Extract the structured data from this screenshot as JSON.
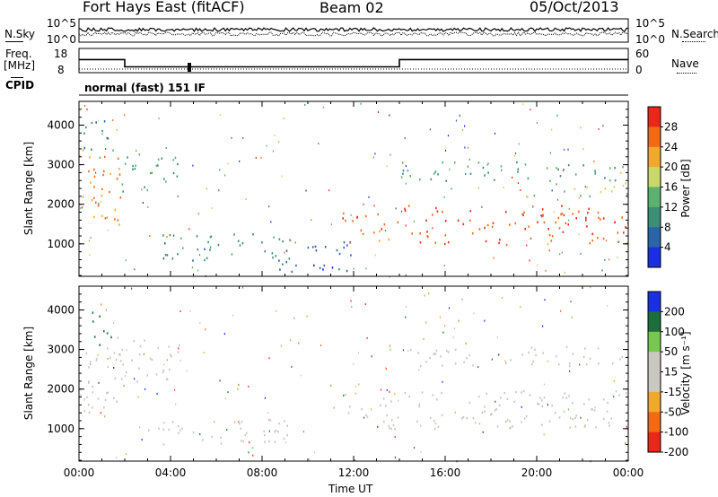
{
  "header": {
    "title": "Fort Hays East (fitACF)",
    "beam": "Beam 02",
    "date": "05/Oct/2013"
  },
  "noise_panel": {
    "left_label": "N.Sky",
    "right_label": "N.Search",
    "tick_top": "10^5",
    "tick_bottom": "10^0"
  },
  "freq_panel": {
    "left_label_1": "Freq.",
    "left_label_2": "[MHz]",
    "right_label": "Nave",
    "left_ticks": [
      "18",
      "8"
    ],
    "right_ticks": [
      "60",
      "0"
    ],
    "cpid_label": "CPID",
    "mode_text": "normal (fast) 151 IF"
  },
  "colors": {
    "power_scale": [
      "#1a2fe0",
      "#2c64a8",
      "#3c8e74",
      "#5cb070",
      "#c8d86a",
      "#f0a830",
      "#f06a18",
      "#e8281a"
    ],
    "velocity_scale": [
      "#1a2fe0",
      "#1e6e3c",
      "#78c850",
      "#c8c8c0",
      "#c8c8c0",
      "#f0a830",
      "#f06a18",
      "#e8281a"
    ]
  },
  "chart_data": [
    {
      "type": "heatmap",
      "name": "power",
      "x_axis": {
        "label": "Time UT",
        "range_hours": [
          0,
          24
        ],
        "tick_labels": [
          "00:00",
          "04:00",
          "08:00",
          "12:00",
          "16:00",
          "20:00",
          "00:00"
        ]
      },
      "y_axis": {
        "label": "Slant Range [km]",
        "range_km": [
          180,
          4600
        ],
        "tick_labels": [
          "1000",
          "2000",
          "3000",
          "4000"
        ]
      },
      "colorbar": {
        "label": "Power [dB]",
        "tick_labels": [
          "4",
          "8",
          "12",
          "16",
          "20",
          "24",
          "28"
        ],
        "range": [
          0,
          32
        ]
      },
      "regions": [
        {
          "t_start": 0.0,
          "t_end": 1.9,
          "range_low": 1400,
          "range_high": 3400,
          "value": 24
        },
        {
          "t_start": 0.2,
          "t_end": 1.6,
          "range_low": 3200,
          "range_high": 4200,
          "value": 10
        },
        {
          "t_start": 1.8,
          "t_end": 4.4,
          "range_low": 2200,
          "range_high": 3300,
          "value": 12
        },
        {
          "t_start": 3.0,
          "t_end": 9.2,
          "range_low": 600,
          "range_high": 1300,
          "value": 10
        },
        {
          "t_start": 8.6,
          "t_end": 12.0,
          "range_low": 300,
          "range_high": 1100,
          "value": 6
        },
        {
          "t_start": 11.5,
          "t_end": 14.0,
          "range_low": 1000,
          "range_high": 1800,
          "value": 26
        },
        {
          "t_start": 14.0,
          "t_end": 24.0,
          "range_low": 1000,
          "range_high": 2000,
          "value": 28
        },
        {
          "t_start": 14.0,
          "t_end": 24.0,
          "range_low": 2600,
          "range_high": 3100,
          "value": 12
        },
        {
          "t_start": 19.5,
          "t_end": 24.0,
          "range_low": 2200,
          "range_high": 2600,
          "value": 16
        }
      ]
    },
    {
      "type": "heatmap",
      "name": "velocity",
      "x_axis": {
        "label": "Time UT",
        "range_hours": [
          0,
          24
        ],
        "tick_labels": [
          "00:00",
          "04:00",
          "08:00",
          "12:00",
          "16:00",
          "20:00",
          "00:00"
        ]
      },
      "y_axis": {
        "label": "Slant Range [km]",
        "range_km": [
          180,
          4600
        ],
        "tick_labels": [
          "1000",
          "2000",
          "3000",
          "4000"
        ]
      },
      "colorbar": {
        "label": "Velocity [m s⁻¹]",
        "tick_labels": [
          "200",
          "100",
          "50",
          "15",
          "-15",
          "-50",
          "-100",
          "-200"
        ],
        "range": [
          -250,
          250
        ]
      },
      "regions": [
        {
          "t_start": 0.0,
          "t_end": 1.9,
          "range_low": 1400,
          "range_high": 3400,
          "value": 0
        },
        {
          "t_start": 0.4,
          "t_end": 1.4,
          "range_low": 3000,
          "range_high": 4000,
          "value": 150
        },
        {
          "t_start": 1.8,
          "t_end": 4.4,
          "range_low": 2200,
          "range_high": 3300,
          "value": 0
        },
        {
          "t_start": 3.0,
          "t_end": 9.2,
          "range_low": 600,
          "range_high": 1300,
          "value": 0
        },
        {
          "t_start": 11.5,
          "t_end": 14.0,
          "range_low": 1000,
          "range_high": 1800,
          "value": 0
        },
        {
          "t_start": 14.0,
          "t_end": 24.0,
          "range_low": 1000,
          "range_high": 2000,
          "value": 0
        },
        {
          "t_start": 14.0,
          "t_end": 24.0,
          "range_low": 2600,
          "range_high": 3100,
          "value": 0
        }
      ]
    },
    {
      "type": "line",
      "name": "frequency",
      "x": [
        0,
        2.0,
        2.0,
        14.0,
        14.0,
        24
      ],
      "y": [
        13.4,
        13.4,
        10.4,
        10.4,
        13.4,
        13.4
      ],
      "y_range": [
        8,
        18
      ]
    }
  ]
}
